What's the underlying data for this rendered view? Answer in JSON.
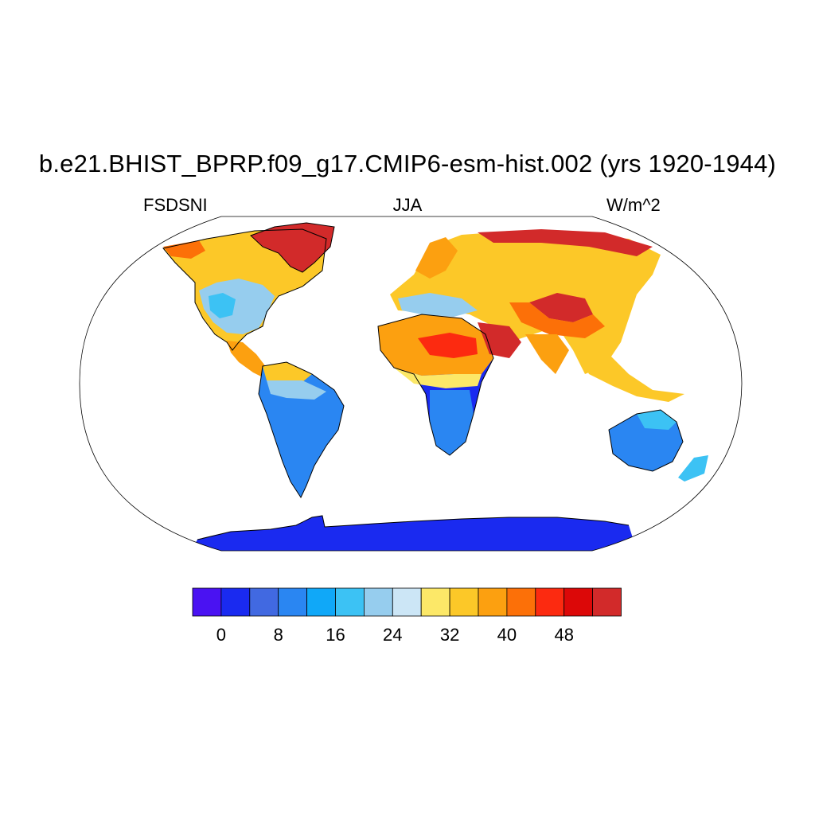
{
  "title": "b.e21.BHIST_BPRP.f09_g17.CMIP6-esm-hist.002 (yrs 1920-1944)",
  "variable": "FSDSNI",
  "season": "JJA",
  "units": "W/m^2",
  "colorbar": {
    "colors": [
      "#4a12f2",
      "#1a2af0",
      "#4169e1",
      "#2a86f2",
      "#10a8f8",
      "#3cc2f4",
      "#96cdee",
      "#cce6f6",
      "#fce868",
      "#fcc828",
      "#fca010",
      "#fc7008",
      "#fc2a10",
      "#dc0808",
      "#d22a2a"
    ],
    "tick_labels": [
      "0",
      "8",
      "16",
      "24",
      "32",
      "40",
      "48"
    ],
    "tick_boundary_index": [
      1,
      3,
      5,
      7,
      9,
      11,
      13
    ]
  }
}
